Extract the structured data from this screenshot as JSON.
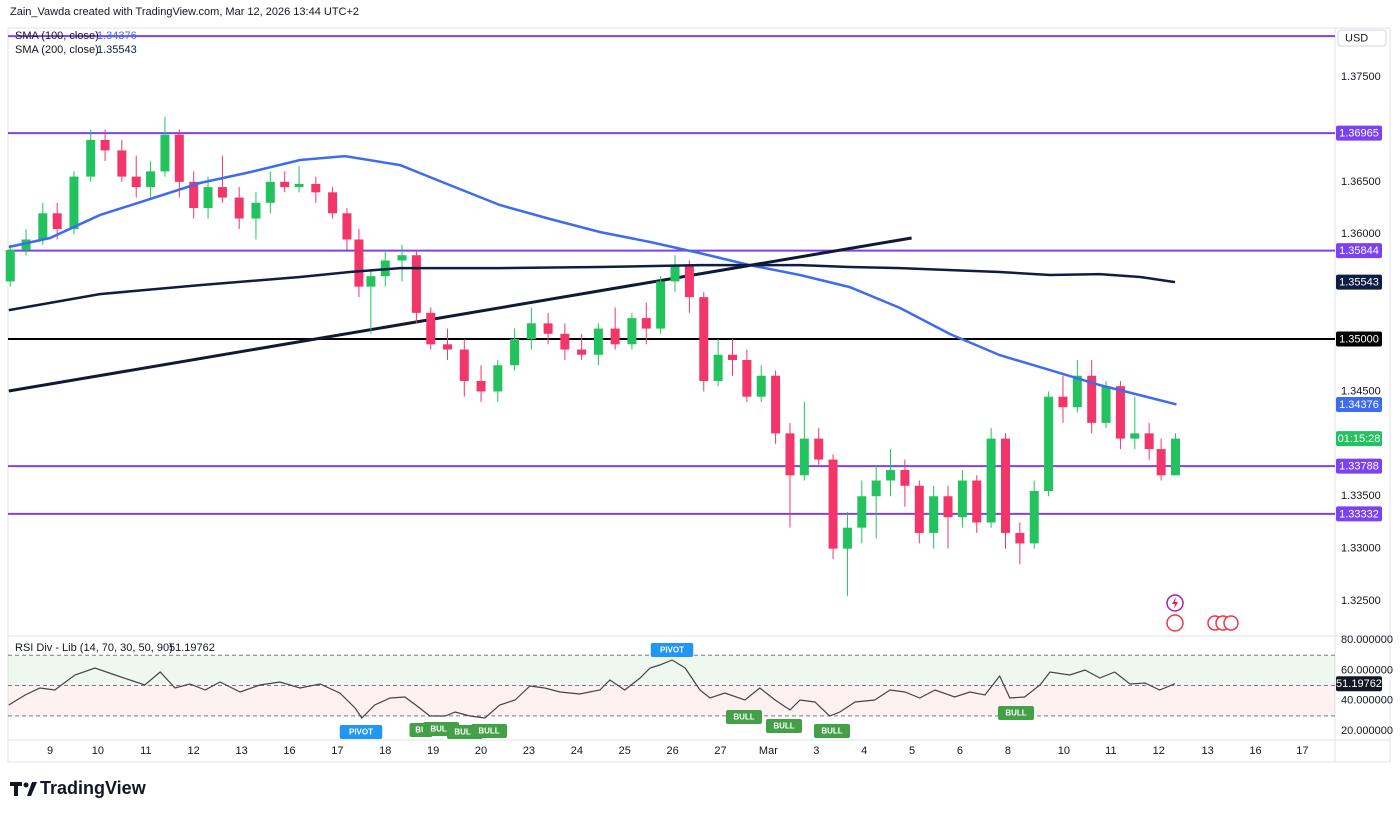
{
  "header": {
    "attribution": "Zain_Vawda created with TradingView.com, Mar 12, 2026 13:44 UTC+2",
    "logo": "TradingView"
  },
  "chart_data": [
    {
      "type": "candlestick",
      "currency": "USD",
      "up_color": "#22c35e",
      "down_color": "#f23669",
      "xlim": [
        -0.877,
        26.83
      ],
      "ylim": [
        1.32176,
        1.37968
      ],
      "xticks": [
        {
          "value": 0,
          "label": "9"
        },
        {
          "value": 1,
          "label": "10"
        },
        {
          "value": 2,
          "label": "11"
        },
        {
          "value": 3,
          "label": "12"
        },
        {
          "value": 4,
          "label": "13"
        },
        {
          "value": 5,
          "label": "16"
        },
        {
          "value": 6,
          "label": "17"
        },
        {
          "value": 7,
          "label": "18"
        },
        {
          "value": 8,
          "label": "19"
        },
        {
          "value": 9,
          "label": "20"
        },
        {
          "value": 10,
          "label": "23"
        },
        {
          "value": 11,
          "label": "24"
        },
        {
          "value": 12,
          "label": "25"
        },
        {
          "value": 13,
          "label": "26"
        },
        {
          "value": 14,
          "label": "27"
        },
        {
          "value": 15,
          "label": "Mar"
        },
        {
          "value": 16,
          "label": "3"
        },
        {
          "value": 17,
          "label": "4"
        },
        {
          "value": 18,
          "label": "5"
        },
        {
          "value": 19,
          "label": "6"
        },
        {
          "value": 20,
          "label": "8"
        },
        {
          "value": 21.17,
          "label": "10"
        },
        {
          "value": 22.15,
          "label": "11"
        },
        {
          "value": 23.15,
          "label": "12"
        },
        {
          "value": 24.17,
          "label": "13"
        },
        {
          "value": 25.17,
          "label": "16"
        },
        {
          "value": 26.15,
          "label": "17"
        }
      ],
      "yticks": [
        {
          "value": 1.375,
          "label": "1.37500"
        },
        {
          "value": 1.365,
          "label": "1.36500"
        },
        {
          "value": 1.36,
          "label": "1.36000"
        },
        {
          "value": 1.345,
          "label": "1.34500"
        },
        {
          "value": 1.335,
          "label": "1.33500"
        },
        {
          "value": 1.33,
          "label": "1.33000"
        },
        {
          "value": 1.325,
          "label": "1.32500"
        }
      ],
      "x": [
        -0.83,
        -0.5,
        -0.15,
        0.15,
        0.5,
        0.85,
        1.15,
        1.5,
        1.8,
        2.1,
        2.4,
        2.7,
        3.0,
        3.3,
        3.6,
        3.95,
        4.3,
        4.6,
        4.9,
        5.2,
        5.55,
        5.9,
        6.2,
        6.45,
        6.7,
        7.0,
        7.35,
        7.65,
        7.95,
        8.3,
        8.65,
        9.0,
        9.35,
        9.7,
        10.05,
        10.4,
        10.75,
        11.1,
        11.45,
        11.8,
        12.15,
        12.45,
        12.75,
        13.05,
        13.35,
        13.65,
        13.95,
        14.25,
        14.55,
        14.85,
        15.15,
        15.45,
        15.75,
        16.05,
        16.35,
        16.65,
        16.95,
        17.25,
        17.55,
        17.85,
        18.15,
        18.45,
        18.75,
        19.05,
        19.35,
        19.65,
        19.95,
        20.25,
        20.55,
        20.85,
        21.15,
        21.45,
        21.75,
        22.05,
        22.35,
        22.65,
        22.95,
        23.2,
        23.5
      ],
      "open": [
        1.3555,
        1.3585,
        1.3595,
        1.362,
        1.3605,
        1.3655,
        1.369,
        1.368,
        1.3655,
        1.3645,
        1.366,
        1.3695,
        1.365,
        1.3625,
        1.3645,
        1.3635,
        1.3615,
        1.363,
        1.365,
        1.3645,
        1.3648,
        1.364,
        1.362,
        1.3595,
        1.355,
        1.356,
        1.3575,
        1.358,
        1.3525,
        1.3495,
        1.349,
        1.346,
        1.345,
        1.3475,
        1.35,
        1.3515,
        1.3505,
        1.349,
        1.3485,
        1.351,
        1.3495,
        1.352,
        1.351,
        1.3555,
        1.357,
        1.354,
        1.346,
        1.3485,
        1.348,
        1.3445,
        1.3465,
        1.341,
        1.337,
        1.3405,
        1.3385,
        1.33,
        1.332,
        1.335,
        1.3365,
        1.3375,
        1.336,
        1.3315,
        1.335,
        1.333,
        1.3365,
        1.3325,
        1.3405,
        1.3315,
        1.3305,
        1.3355,
        1.3445,
        1.3435,
        1.3465,
        1.342,
        1.3455,
        1.3405,
        1.341,
        1.3395,
        1.337
      ],
      "high": [
        1.359,
        1.3605,
        1.363,
        1.363,
        1.366,
        1.37,
        1.37,
        1.369,
        1.3675,
        1.367,
        1.3712,
        1.37,
        1.366,
        1.3655,
        1.3675,
        1.3645,
        1.364,
        1.366,
        1.366,
        1.3665,
        1.3655,
        1.3645,
        1.3625,
        1.3605,
        1.3565,
        1.3585,
        1.359,
        1.3585,
        1.353,
        1.351,
        1.35,
        1.3475,
        1.348,
        1.351,
        1.353,
        1.3525,
        1.3515,
        1.3505,
        1.3515,
        1.353,
        1.3525,
        1.3535,
        1.356,
        1.358,
        1.3575,
        1.3545,
        1.35,
        1.35,
        1.349,
        1.3475,
        1.347,
        1.342,
        1.344,
        1.3415,
        1.339,
        1.3335,
        1.3365,
        1.338,
        1.3395,
        1.3385,
        1.3365,
        1.336,
        1.336,
        1.3375,
        1.337,
        1.3415,
        1.341,
        1.3325,
        1.3365,
        1.345,
        1.3465,
        1.348,
        1.348,
        1.346,
        1.346,
        1.3445,
        1.342,
        1.3405,
        1.341
      ],
      "low": [
        1.355,
        1.358,
        1.359,
        1.3595,
        1.36,
        1.365,
        1.367,
        1.365,
        1.3635,
        1.3635,
        1.3655,
        1.3635,
        1.3615,
        1.3615,
        1.363,
        1.3605,
        1.3595,
        1.362,
        1.364,
        1.364,
        1.363,
        1.3615,
        1.3585,
        1.354,
        1.3505,
        1.355,
        1.3555,
        1.3515,
        1.349,
        1.348,
        1.3445,
        1.344,
        1.344,
        1.347,
        1.349,
        1.3495,
        1.348,
        1.348,
        1.3475,
        1.349,
        1.349,
        1.3495,
        1.3505,
        1.3545,
        1.3525,
        1.345,
        1.3455,
        1.3465,
        1.344,
        1.344,
        1.34,
        1.332,
        1.3365,
        1.338,
        1.329,
        1.3255,
        1.3305,
        1.331,
        1.335,
        1.334,
        1.3305,
        1.33,
        1.33,
        1.332,
        1.3315,
        1.332,
        1.33,
        1.3285,
        1.33,
        1.335,
        1.342,
        1.343,
        1.341,
        1.3415,
        1.3395,
        1.3395,
        1.3385,
        1.3365,
        1.337
      ],
      "close": [
        1.3585,
        1.3595,
        1.362,
        1.3605,
        1.3655,
        1.369,
        1.368,
        1.3655,
        1.3645,
        1.366,
        1.3695,
        1.365,
        1.3625,
        1.3645,
        1.3635,
        1.3615,
        1.363,
        1.365,
        1.3645,
        1.3648,
        1.364,
        1.362,
        1.3595,
        1.355,
        1.356,
        1.3575,
        1.358,
        1.3525,
        1.3495,
        1.349,
        1.346,
        1.345,
        1.3475,
        1.35,
        1.3515,
        1.3505,
        1.349,
        1.3485,
        1.351,
        1.3495,
        1.352,
        1.351,
        1.3555,
        1.357,
        1.354,
        1.346,
        1.3485,
        1.348,
        1.3445,
        1.3465,
        1.341,
        1.337,
        1.3405,
        1.3385,
        1.33,
        1.332,
        1.335,
        1.3365,
        1.3375,
        1.336,
        1.3315,
        1.335,
        1.333,
        1.3365,
        1.3325,
        1.3405,
        1.3315,
        1.3305,
        1.3355,
        1.3445,
        1.3435,
        1.3465,
        1.342,
        1.3455,
        1.3405,
        1.341,
        1.3395,
        1.337,
        1.3405
      ],
      "series": [
        {
          "name": "SMA (100, close)",
          "color": "#3d6cf0",
          "x": [
            -0.86,
            0,
            1.04,
            3.13,
            4.18,
            5.22,
            6.16,
            7.31,
            8.35,
            9.39,
            10.44,
            11.48,
            12.53,
            13.57,
            14.61,
            15.66,
            16.7,
            17.75,
            18.79,
            19.83,
            20.88,
            21.92,
            23.52
          ],
          "values": [
            1.35878,
            1.35964,
            1.36183,
            1.36489,
            1.36593,
            1.36708,
            1.36746,
            1.3666,
            1.36469,
            1.36279,
            1.36145,
            1.36021,
            1.35926,
            1.3582,
            1.35706,
            1.35611,
            1.35496,
            1.35296,
            1.35048,
            1.34847,
            1.34704,
            1.34561,
            1.34376
          ]
        },
        {
          "name": "SMA (200, close)",
          "color": "#0f1d45",
          "x": [
            -0.86,
            1.04,
            3.13,
            5.22,
            6.26,
            7.31,
            9.39,
            11.48,
            13.57,
            15.66,
            16.7,
            17.75,
            19.83,
            20.88,
            21.92,
            22.76,
            23.49
          ],
          "values": [
            1.35276,
            1.35429,
            1.35515,
            1.35592,
            1.3564,
            1.35677,
            1.35677,
            1.35687,
            1.35706,
            1.35706,
            1.35687,
            1.35677,
            1.3564,
            1.35611,
            1.3562,
            1.35592,
            1.35543
          ]
        }
      ],
      "levels": [
        {
          "value": 1.3789,
          "color": "#7b42f0",
          "show_label": false
        },
        {
          "value": 1.36965,
          "color": "#7b42f0"
        },
        {
          "value": 1.35844,
          "color": "#7b42f0"
        },
        {
          "value": {
            "value": 1.35,
            "label": "1.35000"
          },
          "color": "#000000"
        },
        {
          "value": 1.33788,
          "color": "#7b42f0"
        },
        {
          "value": 1.33332,
          "color": "#7b42f0"
        }
      ],
      "trendline": {
        "x": [
          -0.86,
          17.99
        ],
        "values": [
          1.34504,
          1.35964
        ],
        "color": "#0f1a33"
      },
      "countdown": "01:15:28",
      "countdown_color": "#22c35e"
    },
    {
      "type": "line",
      "title": "RSI Div - Lib (14, 70, 30, 50, 90)",
      "color": "#444444",
      "xlim": [
        -0.877,
        26.83
      ],
      "ylim": [
        15.4,
        82
      ],
      "yticks": [
        {
          "value": 80,
          "label": "80.000000"
        },
        {
          "value": 60,
          "label": "60.000000"
        },
        {
          "value": 40,
          "label": "40.000000"
        },
        {
          "value": 20,
          "label": "20.000000"
        }
      ],
      "levels": [
        70,
        50,
        30
      ],
      "band_colors": [
        "rgba(76,175,80,0.09)",
        "rgba(242,54,69,0.07)"
      ],
      "x": [
        -0.86,
        -0.52,
        -0.21,
        0.1,
        0.52,
        0.94,
        1.36,
        1.67,
        1.98,
        2.3,
        2.61,
        2.92,
        3.24,
        3.55,
        3.97,
        4.38,
        4.8,
        5.22,
        5.64,
        6.05,
        6.37,
        6.51,
        6.78,
        7.1,
        7.41,
        7.72,
        7.93,
        8.25,
        8.46,
        8.77,
        9.08,
        9.39,
        9.71,
        10.02,
        10.33,
        10.65,
        11.06,
        11.48,
        11.69,
        12.0,
        12.32,
        12.53,
        12.73,
        12.99,
        13.26,
        13.57,
        13.78,
        14.09,
        14.51,
        14.82,
        15.14,
        15.45,
        15.66,
        15.97,
        16.28,
        16.49,
        16.81,
        17.22,
        17.54,
        17.85,
        18.16,
        18.48,
        18.89,
        19.21,
        19.52,
        19.83,
        20.04,
        20.35,
        20.67,
        20.88,
        21.29,
        21.61,
        21.92,
        22.23,
        22.55,
        22.86,
        23.17,
        23.49
      ],
      "values": [
        37.15,
        43.75,
        48.36,
        47.04,
        56.93,
        61.54,
        56.93,
        53.63,
        50.34,
        58.91,
        48.36,
        51.0,
        47.04,
        52.31,
        45.72,
        50.34,
        52.31,
        48.36,
        51.0,
        45.06,
        35.18,
        28.59,
        37.15,
        41.77,
        42.43,
        35.18,
        29.9,
        29.9,
        32.54,
        29.9,
        28.59,
        37.15,
        40.45,
        49.68,
        48.36,
        45.72,
        44.4,
        47.04,
        53.63,
        47.04,
        54.95,
        61.54,
        63.52,
        66.82,
        61.54,
        47.04,
        41.77,
        45.06,
        40.45,
        48.36,
        40.45,
        33.86,
        40.45,
        39.13,
        29.9,
        32.54,
        39.13,
        40.45,
        47.04,
        45.72,
        41.77,
        47.04,
        42.43,
        45.72,
        43.75,
        56.27,
        41.77,
        42.43,
        50.34,
        58.91,
        56.93,
        60.22,
        54.95,
        58.91,
        51.0,
        51.66,
        47.04,
        51.19762
      ],
      "signals": [
        {
          "label": "PIVOT",
          "color": "#2196f3"
        },
        {
          "label": "BU",
          "color": "#43a047"
        },
        {
          "label": "BULL",
          "color": "#43a047"
        },
        {
          "label": "BULL",
          "color": "#43a047"
        },
        {
          "label": "BULL",
          "color": "#43a047"
        },
        {
          "label": "PIVOT",
          "color": "#2196f3"
        },
        {
          "label": "BULL",
          "color": "#43a047"
        },
        {
          "label": "BULL",
          "color": "#43a047"
        },
        {
          "label": "BULL",
          "color": "#43a047"
        },
        {
          "label": "BULL",
          "color": "#43a047"
        }
      ]
    }
  ]
}
